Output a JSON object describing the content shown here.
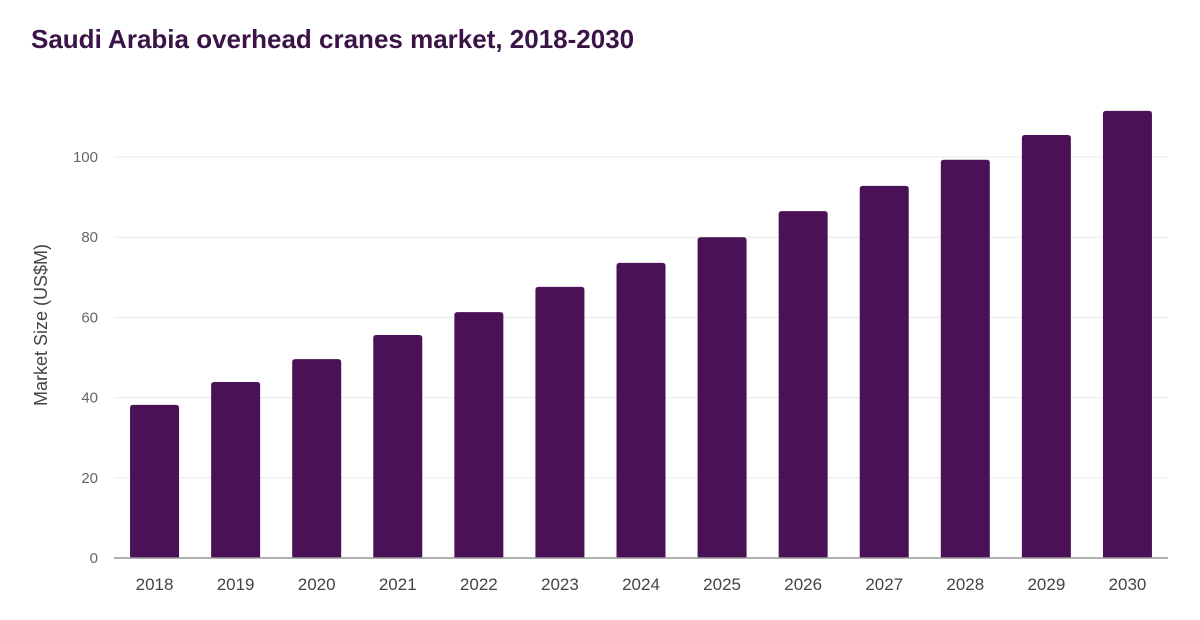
{
  "chart_data": {
    "type": "bar",
    "title": "Saudi Arabia overhead cranes market, 2018-2030",
    "xlabel": "",
    "ylabel": "Market Size (US$M)",
    "categories": [
      "2018",
      "2019",
      "2020",
      "2021",
      "2022",
      "2023",
      "2024",
      "2025",
      "2026",
      "2027",
      "2028",
      "2029",
      "2030"
    ],
    "values": [
      38.2,
      43.9,
      49.6,
      55.6,
      61.3,
      67.6,
      73.6,
      80.0,
      86.5,
      92.8,
      99.3,
      105.5,
      111.5
    ],
    "ylim": [
      0,
      120
    ],
    "yticks": [
      0,
      20,
      40,
      60,
      80,
      100
    ],
    "grid": true,
    "legend": "none",
    "bar_color": "#4b1157"
  }
}
